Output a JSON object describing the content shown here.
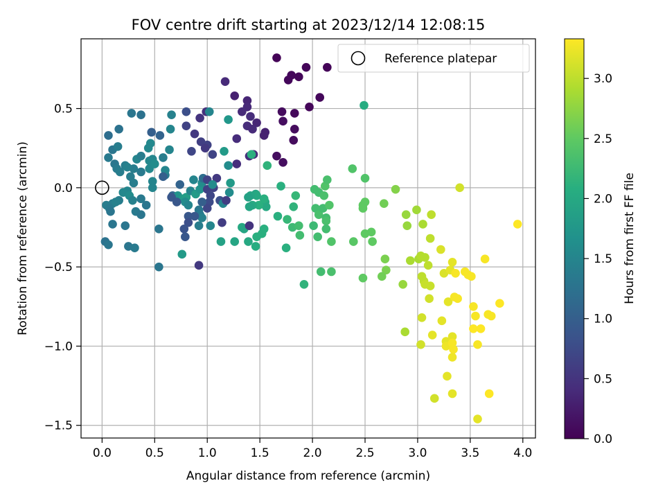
{
  "chart_data": {
    "type": "scatter",
    "title": "FOV centre drift starting at 2023/12/14 12:08:15",
    "xlabel": "Angular distance from reference (arcmin)",
    "ylabel": "Rotation from reference (arcmin)",
    "xlim": [
      -0.2,
      4.12
    ],
    "ylim": [
      -1.58,
      0.94
    ],
    "x_ticks": [
      "0.0",
      "0.5",
      "1.0",
      "1.5",
      "2.0",
      "2.5",
      "3.0",
      "3.5",
      "4.0"
    ],
    "x_tick_values": [
      0,
      0.5,
      1,
      1.5,
      2,
      2.5,
      3,
      3.5,
      4
    ],
    "y_ticks": [
      "0.5",
      "0.0",
      "−0.5",
      "−1.0",
      "−1.5"
    ],
    "y_tick_values": [
      0.5,
      0,
      -0.5,
      -1,
      -1.5
    ],
    "grid": true,
    "legend": {
      "position": "top-right",
      "label": "Reference platepar",
      "marker": "open-circle"
    },
    "reference_point": {
      "x": 0,
      "y": 0
    },
    "colorbar": {
      "label": "Hours from first FF file",
      "colormap": "viridis",
      "range": [
        0,
        3.33
      ],
      "ticks": [
        "0.0",
        "0.5",
        "1.0",
        "1.5",
        "2.0",
        "2.5",
        "3.0"
      ],
      "tick_values": [
        0,
        0.5,
        1,
        1.5,
        2,
        2.5,
        3
      ]
    },
    "points": [
      [
        1.66,
        0.82,
        0.03
      ],
      [
        2.14,
        0.76,
        0.04
      ],
      [
        1.94,
        0.76,
        0.05
      ],
      [
        1.8,
        0.71,
        0.06
      ],
      [
        1.87,
        0.7,
        0.05
      ],
      [
        1.77,
        0.68,
        0.06
      ],
      [
        1.17,
        0.67,
        0.4
      ],
      [
        2.07,
        0.57,
        0.06
      ],
      [
        1.97,
        0.51,
        0.05
      ],
      [
        1.83,
        0.47,
        0.07
      ],
      [
        1.71,
        0.48,
        0.1
      ],
      [
        1.26,
        0.58,
        0.3
      ],
      [
        1.38,
        0.55,
        0.35
      ],
      [
        1.38,
        0.51,
        0.38
      ],
      [
        1.33,
        0.48,
        0.4
      ],
      [
        1.47,
        0.41,
        0.35
      ],
      [
        1.41,
        0.45,
        0.42
      ],
      [
        1.38,
        0.39,
        0.42
      ],
      [
        1.72,
        0.42,
        0.12
      ],
      [
        1.83,
        0.37,
        0.1
      ],
      [
        1.55,
        0.35,
        0.3
      ],
      [
        1.54,
        0.33,
        0.3
      ],
      [
        1.82,
        0.3,
        0.1
      ],
      [
        1.43,
        0.37,
        0.4
      ],
      [
        1.28,
        0.31,
        0.42
      ],
      [
        1.66,
        0.2,
        0.12
      ],
      [
        1.72,
        0.16,
        0.12
      ],
      [
        1.4,
        0.2,
        0.45
      ],
      [
        1.44,
        0.21,
        0.4
      ],
      [
        1.28,
        0.15,
        0.43
      ],
      [
        0.99,
        0.48,
        0.45
      ],
      [
        0.93,
        0.44,
        0.5
      ],
      [
        0.88,
        0.34,
        0.55
      ],
      [
        0.8,
        0.39,
        0.65
      ],
      [
        0.8,
        0.48,
        0.8
      ],
      [
        0.94,
        0.29,
        0.62
      ],
      [
        1.0,
        0.27,
        0.65
      ],
      [
        0.98,
        0.25,
        0.55
      ],
      [
        1.05,
        0.21,
        0.68
      ],
      [
        0.85,
        0.23,
        0.7
      ],
      [
        1.02,
        0.48,
        1.5
      ],
      [
        1.2,
        0.43,
        1.75
      ],
      [
        1.16,
        0.23,
        1.8
      ],
      [
        1.42,
        0.21,
        2.1
      ],
      [
        1.2,
        0.14,
        1.6
      ],
      [
        0.28,
        0.47,
        1.3
      ],
      [
        0.37,
        0.46,
        1.25
      ],
      [
        0.66,
        0.46,
        1.45
      ],
      [
        0.47,
        0.35,
        1.0
      ],
      [
        0.55,
        0.33,
        1.05
      ],
      [
        0.65,
        0.37,
        1.5
      ],
      [
        0.06,
        0.33,
        1.2
      ],
      [
        0.16,
        0.37,
        1.25
      ],
      [
        0.1,
        0.24,
        1.3
      ],
      [
        0.15,
        0.26,
        1.4
      ],
      [
        0.06,
        0.19,
        1.35
      ],
      [
        0.12,
        0.15,
        1.3
      ],
      [
        0.22,
        0.14,
        1.4
      ],
      [
        0.14,
        0.12,
        1.35
      ],
      [
        0.17,
        0.1,
        1.4
      ],
      [
        0.3,
        0.12,
        1.4
      ],
      [
        0.24,
        0.13,
        1.45
      ],
      [
        0.33,
        0.18,
        1.5
      ],
      [
        0.37,
        0.2,
        1.4
      ],
      [
        0.44,
        0.25,
        1.55
      ],
      [
        0.46,
        0.28,
        1.55
      ],
      [
        0.48,
        0.18,
        1.5
      ],
      [
        0.45,
        0.17,
        1.55
      ],
      [
        0.45,
        0.12,
        1.55
      ],
      [
        0.5,
        0.15,
        1.6
      ],
      [
        0.64,
        0.24,
        1.5
      ],
      [
        0.58,
        0.19,
        1.4
      ],
      [
        0.6,
        0.08,
        1.35
      ],
      [
        0.6,
        0.11,
        1.5
      ],
      [
        0.58,
        0.07,
        1.0
      ],
      [
        0.37,
        0.1,
        1.35
      ],
      [
        0.27,
        0.07,
        1.4
      ],
      [
        0.3,
        0.03,
        1.4
      ],
      [
        0.48,
        0.04,
        1.5
      ],
      [
        0.48,
        0.0,
        1.5
      ],
      [
        0.24,
        -0.02,
        1.5
      ],
      [
        0.2,
        -0.03,
        1.55
      ],
      [
        0.26,
        -0.05,
        1.6
      ],
      [
        0.29,
        -0.08,
        1.45
      ],
      [
        0.16,
        -0.08,
        1.4
      ],
      [
        0.1,
        -0.1,
        1.4
      ],
      [
        0.13,
        -0.09,
        1.45
      ],
      [
        0.04,
        -0.11,
        1.4
      ],
      [
        0.07,
        -0.13,
        1.35
      ],
      [
        0.08,
        -0.15,
        1.3
      ],
      [
        0.32,
        -0.15,
        1.35
      ],
      [
        0.37,
        -0.07,
        1.35
      ],
      [
        0.37,
        -0.17,
        1.3
      ],
      [
        0.42,
        -0.11,
        1.3
      ],
      [
        0.22,
        -0.24,
        1.3
      ],
      [
        0.1,
        -0.23,
        1.3
      ],
      [
        0.03,
        -0.34,
        1.25
      ],
      [
        0.06,
        -0.36,
        1.3
      ],
      [
        0.25,
        -0.37,
        1.3
      ],
      [
        0.31,
        -0.38,
        1.35
      ],
      [
        0.54,
        -0.26,
        1.3
      ],
      [
        0.54,
        -0.5,
        1.3
      ],
      [
        0.67,
        -0.05,
        1.1
      ],
      [
        0.74,
        0.02,
        1.05
      ],
      [
        0.72,
        -0.05,
        1.7
      ],
      [
        0.77,
        -0.07,
        1.8
      ],
      [
        0.8,
        -0.06,
        1.85
      ],
      [
        0.79,
        -0.09,
        1.6
      ],
      [
        0.82,
        -0.11,
        1.5
      ],
      [
        0.84,
        -0.02,
        1.5
      ],
      [
        0.87,
        0.05,
        1.5
      ],
      [
        0.89,
        -0.04,
        1.8
      ],
      [
        0.93,
        -0.01,
        1.7
      ],
      [
        0.95,
        0.03,
        1.6
      ],
      [
        0.96,
        0.06,
        1.2
      ],
      [
        1.0,
        0.05,
        0.65
      ],
      [
        1.0,
        -0.01,
        0.65
      ],
      [
        1.03,
        -0.05,
        0.7
      ],
      [
        1.02,
        -0.09,
        0.75
      ],
      [
        1.09,
        0.06,
        0.55
      ],
      [
        1.06,
        0.0,
        0.65
      ],
      [
        1.05,
        0.02,
        1.6
      ],
      [
        1.12,
        -0.08,
        0.8
      ],
      [
        1.15,
        -0.1,
        1.5
      ],
      [
        1.21,
        -0.03,
        1.6
      ],
      [
        1.22,
        0.03,
        1.8
      ],
      [
        1.18,
        -0.08,
        0.6
      ],
      [
        1.14,
        -0.22,
        0.6
      ],
      [
        1.0,
        -0.13,
        0.7
      ],
      [
        0.95,
        -0.09,
        1.0
      ],
      [
        0.92,
        -0.14,
        1.3
      ],
      [
        0.93,
        -0.17,
        1.35
      ],
      [
        0.95,
        -0.19,
        1.45
      ],
      [
        0.88,
        -0.18,
        0.9
      ],
      [
        0.82,
        -0.18,
        0.9
      ],
      [
        0.82,
        -0.22,
        0.8
      ],
      [
        0.78,
        -0.26,
        0.85
      ],
      [
        0.79,
        -0.31,
        0.9
      ],
      [
        0.92,
        -0.24,
        1.4
      ],
      [
        1.03,
        -0.24,
        1.5
      ],
      [
        0.66,
        -0.06,
        0.9
      ],
      [
        0.71,
        -0.09,
        0.9
      ],
      [
        0.76,
        -0.42,
        1.8
      ],
      [
        0.92,
        -0.49,
        0.55
      ],
      [
        1.13,
        -0.34,
        1.9
      ],
      [
        1.26,
        -0.34,
        1.95
      ],
      [
        1.33,
        -0.25,
        2.0
      ],
      [
        1.35,
        -0.26,
        1.95
      ],
      [
        1.39,
        -0.34,
        2.0
      ],
      [
        1.4,
        -0.24,
        0.5
      ],
      [
        1.46,
        -0.37,
        2.05
      ],
      [
        1.47,
        -0.31,
        2.1
      ],
      [
        1.52,
        -0.29,
        2.1
      ],
      [
        1.54,
        -0.26,
        2.1
      ],
      [
        1.56,
        -0.12,
        2.0
      ],
      [
        1.55,
        -0.09,
        2.0
      ],
      [
        1.54,
        -0.07,
        2.1
      ],
      [
        1.49,
        -0.11,
        2.1
      ],
      [
        1.46,
        -0.04,
        1.95
      ],
      [
        1.47,
        -0.05,
        2.0
      ],
      [
        1.43,
        -0.11,
        2.0
      ],
      [
        1.4,
        -0.12,
        1.95
      ],
      [
        1.41,
        -0.05,
        1.95
      ],
      [
        1.39,
        -0.06,
        1.9
      ],
      [
        1.57,
        0.14,
        2.15
      ],
      [
        1.7,
        0.01,
        2.1
      ],
      [
        1.67,
        -0.18,
        2.1
      ],
      [
        1.76,
        -0.2,
        2.2
      ],
      [
        1.82,
        -0.12,
        2.15
      ],
      [
        1.84,
        -0.05,
        2.2
      ],
      [
        1.81,
        -0.25,
        2.25
      ],
      [
        1.87,
        -0.24,
        2.3
      ],
      [
        1.88,
        -0.3,
        2.3
      ],
      [
        1.75,
        -0.38,
        2.1
      ],
      [
        1.92,
        -0.61,
        2.15
      ],
      [
        2.01,
        -0.24,
        2.25
      ],
      [
        2.05,
        -0.31,
        2.3
      ],
      [
        2.03,
        -0.13,
        2.3
      ],
      [
        2.06,
        -0.17,
        2.35
      ],
      [
        2.1,
        -0.13,
        2.3
      ],
      [
        2.13,
        -0.19,
        2.3
      ],
      [
        2.13,
        -0.21,
        2.35
      ],
      [
        2.16,
        -0.11,
        2.4
      ],
      [
        2.13,
        -0.26,
        2.3
      ],
      [
        2.18,
        -0.34,
        2.4
      ],
      [
        2.08,
        -0.53,
        2.3
      ],
      [
        2.18,
        -0.53,
        2.35
      ],
      [
        2.12,
        0.01,
        2.4
      ],
      [
        2.14,
        0.05,
        2.35
      ],
      [
        2.02,
        -0.01,
        2.3
      ],
      [
        2.06,
        -0.03,
        2.3
      ],
      [
        2.11,
        -0.05,
        2.35
      ],
      [
        2.49,
        0.52,
        2.05
      ],
      [
        2.5,
        0.06,
        2.4
      ],
      [
        2.38,
        0.12,
        2.4
      ],
      [
        2.5,
        -0.09,
        2.5
      ],
      [
        2.48,
        -0.11,
        2.5
      ],
      [
        2.48,
        -0.13,
        2.5
      ],
      [
        2.5,
        -0.29,
        2.5
      ],
      [
        2.56,
        -0.28,
        2.5
      ],
      [
        2.57,
        -0.34,
        2.5
      ],
      [
        2.39,
        -0.34,
        2.45
      ],
      [
        2.48,
        -0.57,
        2.5
      ],
      [
        2.68,
        -0.1,
        2.6
      ],
      [
        2.79,
        -0.01,
        2.7
      ],
      [
        2.69,
        -0.45,
        2.65
      ],
      [
        2.7,
        -0.52,
        2.65
      ],
      [
        2.66,
        -0.56,
        2.6
      ],
      [
        2.86,
        -0.61,
        2.8
      ],
      [
        2.89,
        -0.17,
        2.8
      ],
      [
        2.9,
        -0.24,
        2.8
      ],
      [
        2.88,
        -0.91,
        2.9
      ],
      [
        2.93,
        -0.46,
        2.9
      ],
      [
        2.99,
        -0.14,
        2.85
      ],
      [
        3.01,
        -0.45,
        2.9
      ],
      [
        3.03,
        -0.43,
        2.95
      ],
      [
        3.05,
        -0.23,
        2.9
      ],
      [
        3.07,
        -0.44,
        2.95
      ],
      [
        3.04,
        -0.56,
        3.0
      ],
      [
        3.06,
        -0.59,
        3.0
      ],
      [
        3.07,
        -0.61,
        3.05
      ],
      [
        3.04,
        -0.82,
        3.1
      ],
      [
        3.03,
        -0.99,
        3.1
      ],
      [
        3.13,
        -0.17,
        3.0
      ],
      [
        3.12,
        -0.32,
        3.0
      ],
      [
        3.1,
        -0.49,
        3.0
      ],
      [
        3.12,
        -0.62,
        3.05
      ],
      [
        3.11,
        -0.7,
        3.1
      ],
      [
        3.14,
        -0.93,
        3.2
      ],
      [
        3.16,
        -1.33,
        3.1
      ],
      [
        3.22,
        -0.39,
        3.15
      ],
      [
        3.25,
        -0.54,
        3.15
      ],
      [
        3.23,
        -0.84,
        3.2
      ],
      [
        3.27,
        -0.97,
        3.2
      ],
      [
        3.27,
        -1.0,
        3.25
      ],
      [
        3.28,
        -1.19,
        3.2
      ],
      [
        3.29,
        -0.72,
        3.2
      ],
      [
        3.31,
        -0.52,
        3.2
      ],
      [
        3.33,
        -0.47,
        3.2
      ],
      [
        3.33,
        -0.94,
        3.2
      ],
      [
        3.33,
        -0.98,
        3.3
      ],
      [
        3.34,
        -1.02,
        3.3
      ],
      [
        3.33,
        -1.07,
        3.25
      ],
      [
        3.33,
        -1.3,
        3.2
      ],
      [
        3.35,
        -0.69,
        3.3
      ],
      [
        3.38,
        -0.7,
        3.3
      ],
      [
        3.36,
        -0.54,
        3.3
      ],
      [
        3.4,
        0.0,
        3.1
      ],
      [
        3.45,
        -0.53,
        3.3
      ],
      [
        3.48,
        -0.55,
        3.3
      ],
      [
        3.51,
        -0.56,
        3.3
      ],
      [
        3.53,
        -0.75,
        3.3
      ],
      [
        3.55,
        -0.81,
        3.3
      ],
      [
        3.53,
        -0.89,
        3.35
      ],
      [
        3.6,
        -0.89,
        3.35
      ],
      [
        3.57,
        -0.99,
        3.3
      ],
      [
        3.57,
        -1.46,
        3.2
      ],
      [
        3.64,
        -0.45,
        3.3
      ],
      [
        3.67,
        -0.8,
        3.3
      ],
      [
        3.7,
        -0.81,
        3.3
      ],
      [
        3.68,
        -1.3,
        3.35
      ],
      [
        3.78,
        -0.73,
        3.35
      ],
      [
        3.95,
        -0.23,
        3.33
      ]
    ]
  }
}
